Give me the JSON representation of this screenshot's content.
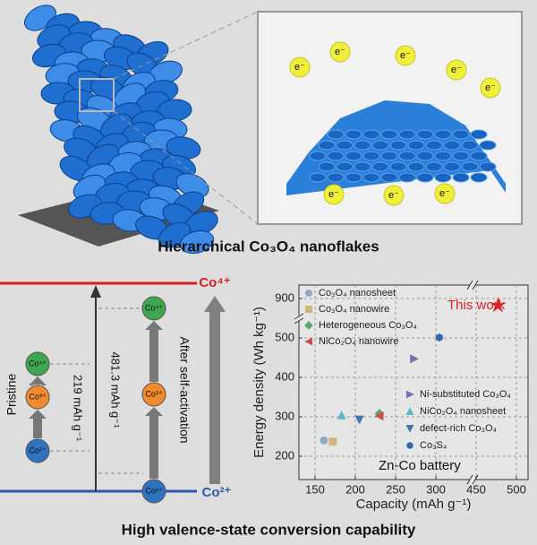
{
  "title": "Hierarchical Co₃O₄ nanoflakes",
  "bottom_title": "High valence-state conversion capability",
  "electrons": [
    "e⁻",
    "e⁻",
    "e⁻",
    "e⁻",
    "e⁻",
    "e⁻",
    "e⁻",
    "e⁻"
  ],
  "diagram": {
    "top_level": "Co⁴⁺",
    "bottom_level": "Co²⁺",
    "pristine": "Pristine",
    "pristine_capacity": "219 mAh g⁻¹",
    "activated_capacity": "481.3 mAh g⁻¹",
    "activated": "After self-activation",
    "pristine_states": [
      "Co²⁺",
      "Co³⁺",
      "Co⁴⁺"
    ],
    "activated_states": [
      "Co²⁺",
      "Co³⁺",
      "Co⁴⁺"
    ]
  },
  "chart_data": {
    "type": "scatter",
    "x_label": "Capacity (mAh g⁻¹)",
    "y_label": "Energy density (Wh kg⁻¹)",
    "annotations": [
      "This work",
      "Zn-Co battery"
    ],
    "xlim": [
      130,
      515
    ],
    "xticks": [
      150,
      200,
      250,
      300,
      450,
      500
    ],
    "ylim": [
      140,
      935
    ],
    "yticks": [
      200,
      300,
      400,
      500,
      900
    ],
    "grid": true,
    "series": [
      {
        "name": "Co₃O₄ nanosheet",
        "color": "#8fa9c9",
        "marker": "circle",
        "x": [
          161
        ],
        "y": [
          240
        ]
      },
      {
        "name": "Co₃O₄ nanowire",
        "color": "#d5b47f",
        "marker": "square",
        "x": [
          172
        ],
        "y": [
          237
        ]
      },
      {
        "name": "Heterogeneous Co₃O₄",
        "color": "#5aa86a",
        "marker": "diamond",
        "x": [
          230
        ],
        "y": [
          308
        ]
      },
      {
        "name": "NiCo₂O₄ nanowire",
        "color": "#c8504f",
        "marker": "triangle-left",
        "x": [
          230
        ],
        "y": [
          302
        ]
      },
      {
        "name": "Ni-substituted Co₃O₄",
        "color": "#7d6eb0",
        "marker": "triangle-right",
        "x": [
          273
        ],
        "y": [
          447
        ]
      },
      {
        "name": "NiCo₂O₄ nanosheet",
        "color": "#5cb8c2",
        "marker": "triangle-up",
        "x": [
          183
        ],
        "y": [
          304
        ]
      },
      {
        "name": "defect-rich Co₃O₄",
        "color": "#3f74b5",
        "marker": "triangle-down",
        "x": [
          205
        ],
        "y": [
          293
        ]
      },
      {
        "name": "Co₃S₄",
        "color": "#2f66b0",
        "marker": "hexagon",
        "x": [
          313
        ],
        "y": [
          505
        ]
      },
      {
        "name": "This work",
        "color": "#e02020",
        "marker": "star",
        "x": [
          477
        ],
        "y": [
          830
        ]
      }
    ]
  }
}
